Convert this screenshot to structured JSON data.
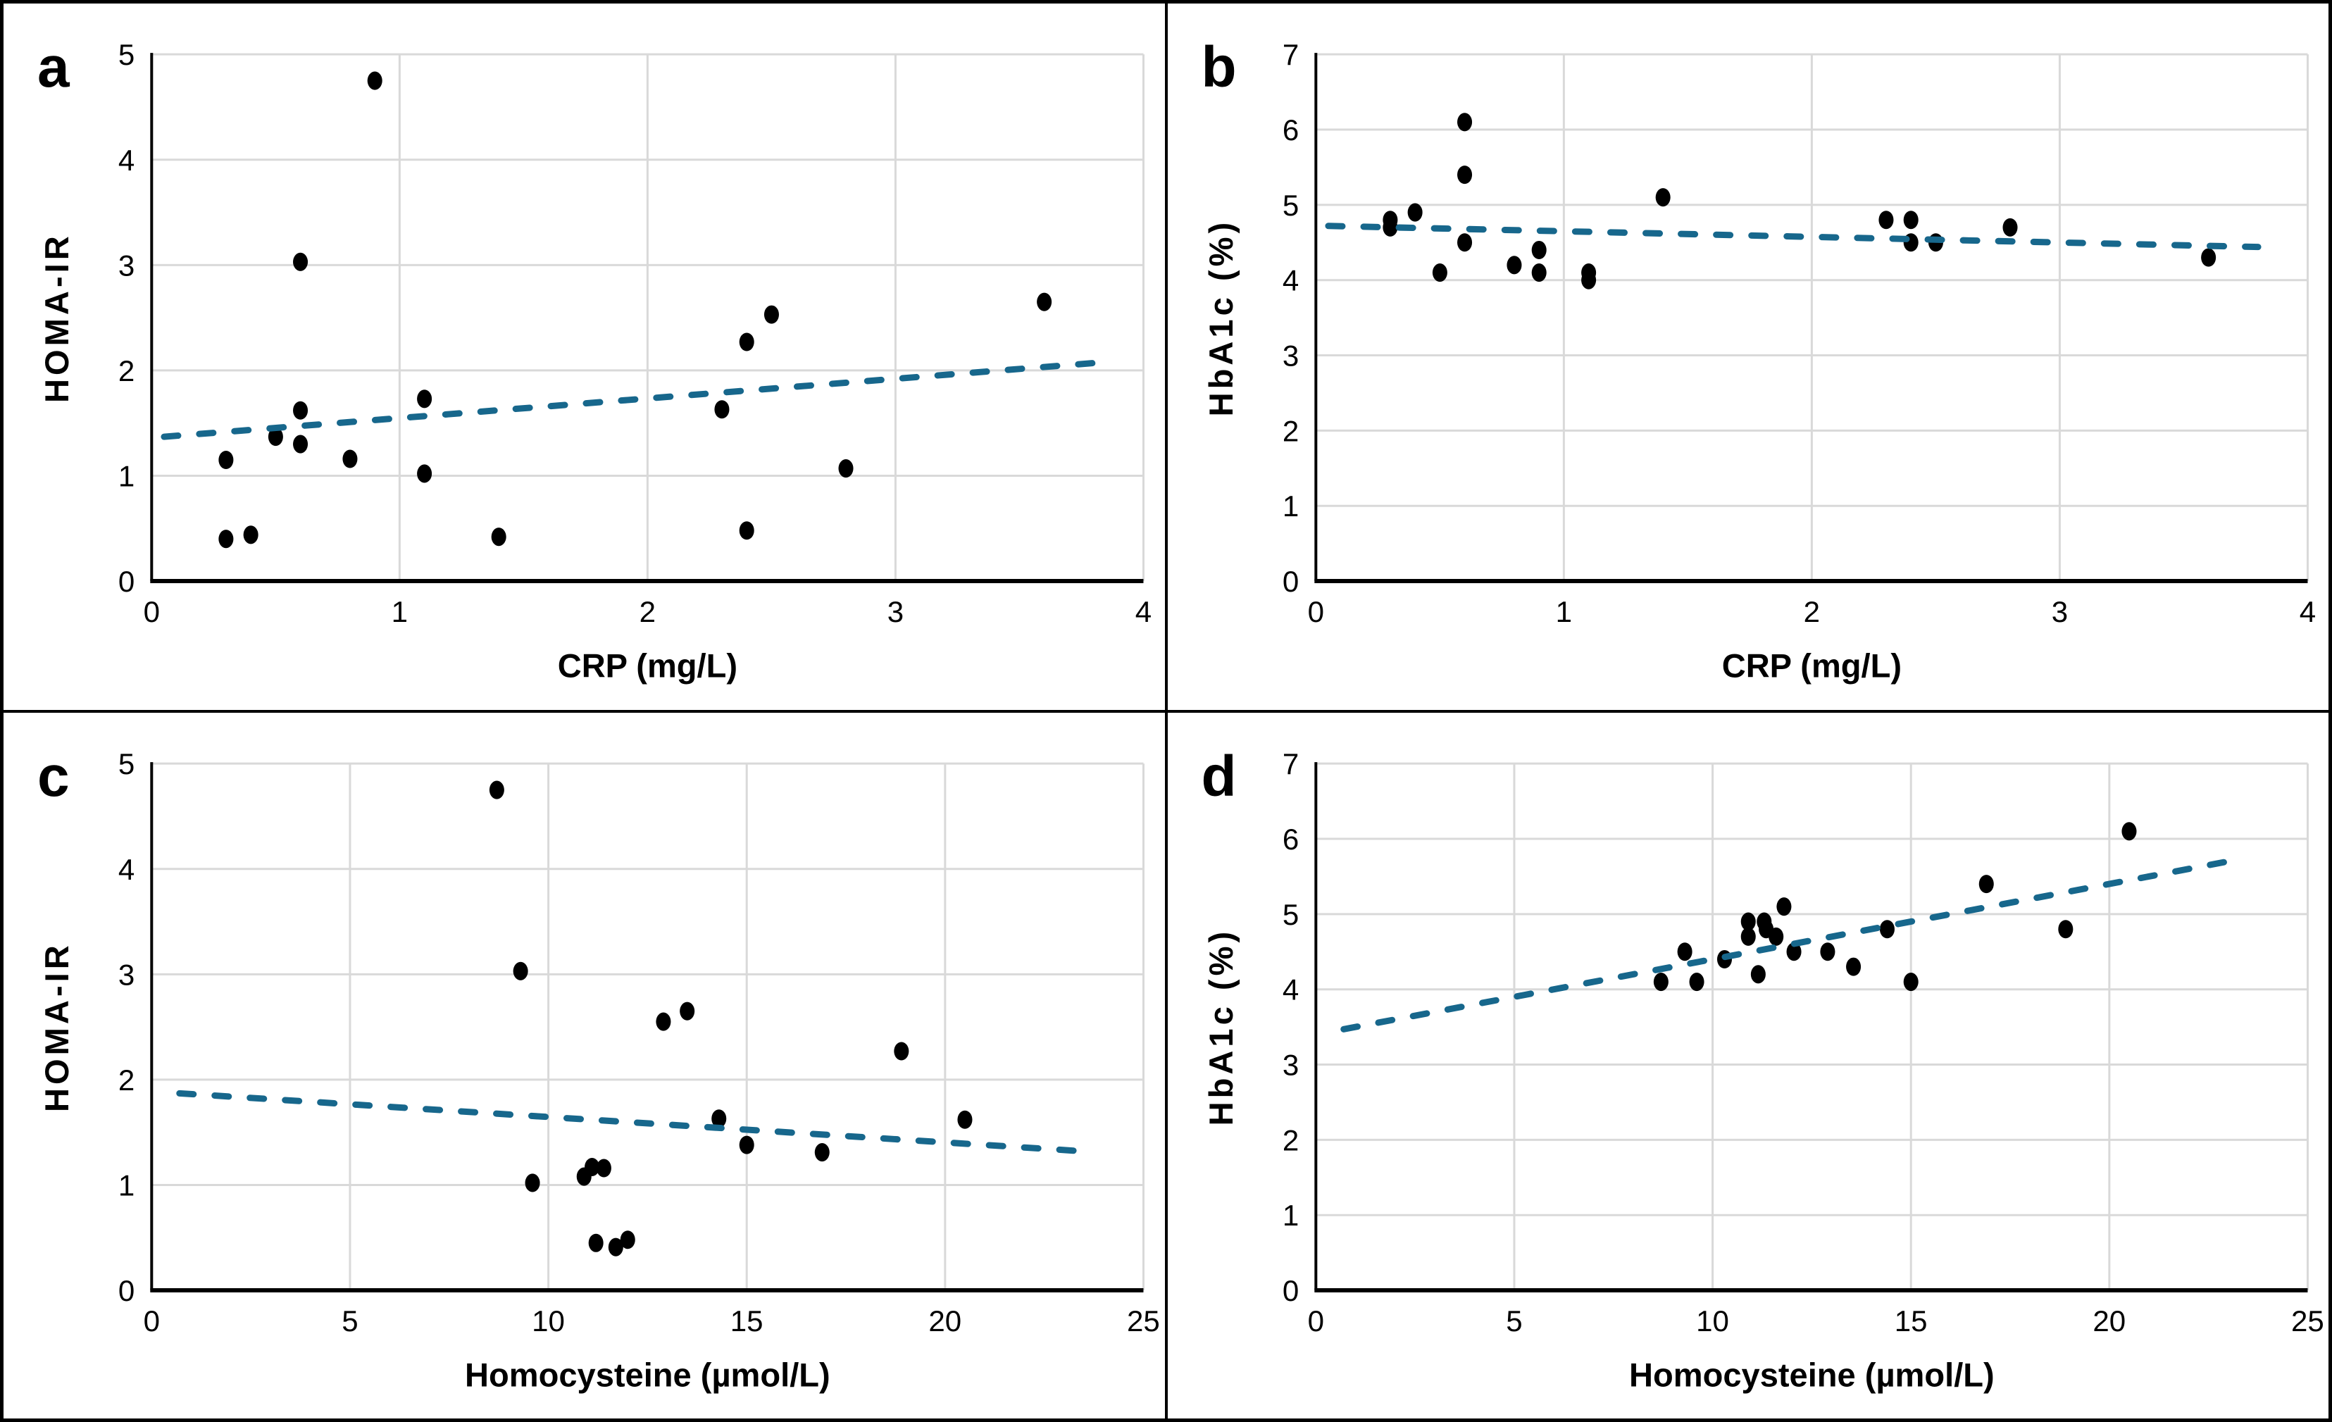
{
  "figure": {
    "type": "2x2 scatter panel figure",
    "background": "#FFFFFF",
    "border_color": "#000000"
  },
  "style": {
    "point_color": "#000000",
    "trend_color": "#17678C",
    "grid_color": "#D9D9D9",
    "axis_color": "#000000",
    "text_color": "#000000"
  },
  "chart_data": [
    {
      "panel_label": "a",
      "type": "scatter",
      "title": "",
      "xlabel": "CRP (mg/L)",
      "ylabel": "HOMA-IR",
      "xlim": [
        0,
        4
      ],
      "ylim": [
        0,
        5
      ],
      "xticks": [
        0,
        1,
        2,
        3,
        4
      ],
      "yticks": [
        0,
        1,
        2,
        3,
        4,
        5
      ],
      "grid": true,
      "legend": "none",
      "points": [
        [
          0.3,
          1.15
        ],
        [
          0.3,
          0.4
        ],
        [
          0.4,
          0.44
        ],
        [
          0.5,
          1.37
        ],
        [
          0.6,
          3.03
        ],
        [
          0.6,
          1.62
        ],
        [
          0.6,
          1.3
        ],
        [
          0.8,
          1.16
        ],
        [
          0.9,
          4.75
        ],
        [
          1.1,
          1.73
        ],
        [
          1.1,
          1.02
        ],
        [
          1.4,
          0.42
        ],
        [
          2.3,
          1.63
        ],
        [
          2.4,
          2.27
        ],
        [
          2.4,
          0.48
        ],
        [
          2.5,
          2.53
        ],
        [
          2.8,
          1.07
        ],
        [
          3.6,
          2.65
        ]
      ],
      "trendline": {
        "style": "dashed",
        "x": [
          0.05,
          3.8
        ],
        "y": [
          1.37,
          2.07
        ]
      }
    },
    {
      "panel_label": "b",
      "type": "scatter",
      "title": "",
      "xlabel": "CRP (mg/L)",
      "ylabel": "HbA1c (%)",
      "xlim": [
        0,
        4
      ],
      "ylim": [
        0,
        7
      ],
      "xticks": [
        0,
        1,
        2,
        3,
        4
      ],
      "yticks": [
        0,
        1,
        2,
        3,
        4,
        5,
        6,
        7
      ],
      "grid": true,
      "legend": "none",
      "points": [
        [
          0.3,
          4.8
        ],
        [
          0.3,
          4.7
        ],
        [
          0.4,
          4.9
        ],
        [
          0.5,
          4.1
        ],
        [
          0.6,
          6.1
        ],
        [
          0.6,
          5.4
        ],
        [
          0.6,
          4.5
        ],
        [
          0.8,
          4.2
        ],
        [
          0.9,
          4.4
        ],
        [
          0.9,
          4.1
        ],
        [
          1.1,
          4.1
        ],
        [
          1.1,
          4.0
        ],
        [
          1.4,
          5.1
        ],
        [
          2.3,
          4.8
        ],
        [
          2.4,
          4.8
        ],
        [
          2.4,
          4.5
        ],
        [
          2.5,
          4.5
        ],
        [
          2.8,
          4.7
        ],
        [
          3.6,
          4.3
        ]
      ],
      "trendline": {
        "style": "dashed",
        "x": [
          0.05,
          3.8
        ],
        "y": [
          4.72,
          4.44
        ]
      }
    },
    {
      "panel_label": "c",
      "type": "scatter",
      "title": "",
      "xlabel": "Homocysteine (µmol/L)",
      "ylabel": "HOMA-IR",
      "xlim": [
        0,
        25
      ],
      "ylim": [
        0,
        5
      ],
      "xticks": [
        0,
        5,
        10,
        15,
        20,
        25
      ],
      "yticks": [
        0,
        1,
        2,
        3,
        4,
        5
      ],
      "grid": true,
      "legend": "none",
      "points": [
        [
          8.7,
          4.75
        ],
        [
          9.3,
          3.03
        ],
        [
          9.6,
          1.02
        ],
        [
          10.9,
          1.08
        ],
        [
          11.1,
          1.17
        ],
        [
          11.4,
          1.16
        ],
        [
          11.2,
          0.45
        ],
        [
          11.7,
          0.41
        ],
        [
          12.0,
          0.48
        ],
        [
          12.9,
          2.55
        ],
        [
          13.5,
          2.65
        ],
        [
          14.3,
          1.63
        ],
        [
          15.0,
          1.38
        ],
        [
          16.9,
          1.31
        ],
        [
          18.9,
          2.27
        ],
        [
          20.5,
          1.62
        ]
      ],
      "trendline": {
        "style": "dashed",
        "x": [
          0.7,
          23.5
        ],
        "y": [
          1.87,
          1.32
        ]
      }
    },
    {
      "panel_label": "d",
      "type": "scatter",
      "title": "",
      "xlabel": "Homocysteine (µmol/L)",
      "ylabel": "HbA1c (%)",
      "xlim": [
        0,
        25
      ],
      "ylim": [
        0,
        7
      ],
      "xticks": [
        0,
        5,
        10,
        15,
        20,
        25
      ],
      "yticks": [
        0,
        1,
        2,
        3,
        4,
        5,
        6,
        7
      ],
      "grid": true,
      "legend": "none",
      "points": [
        [
          8.7,
          4.1
        ],
        [
          9.3,
          4.5
        ],
        [
          9.6,
          4.1
        ],
        [
          10.3,
          4.4
        ],
        [
          10.9,
          4.9
        ],
        [
          10.9,
          4.7
        ],
        [
          11.15,
          4.2
        ],
        [
          11.3,
          4.9
        ],
        [
          11.35,
          4.8
        ],
        [
          11.6,
          4.7
        ],
        [
          11.8,
          5.1
        ],
        [
          12.05,
          4.5
        ],
        [
          12.9,
          4.5
        ],
        [
          13.55,
          4.3
        ],
        [
          14.4,
          4.8
        ],
        [
          15.0,
          4.1
        ],
        [
          16.9,
          5.4
        ],
        [
          18.9,
          4.8
        ],
        [
          20.5,
          6.1
        ]
      ],
      "trendline": {
        "style": "dashed",
        "x": [
          0.7,
          23.3
        ],
        "y": [
          3.47,
          5.73
        ]
      }
    }
  ]
}
